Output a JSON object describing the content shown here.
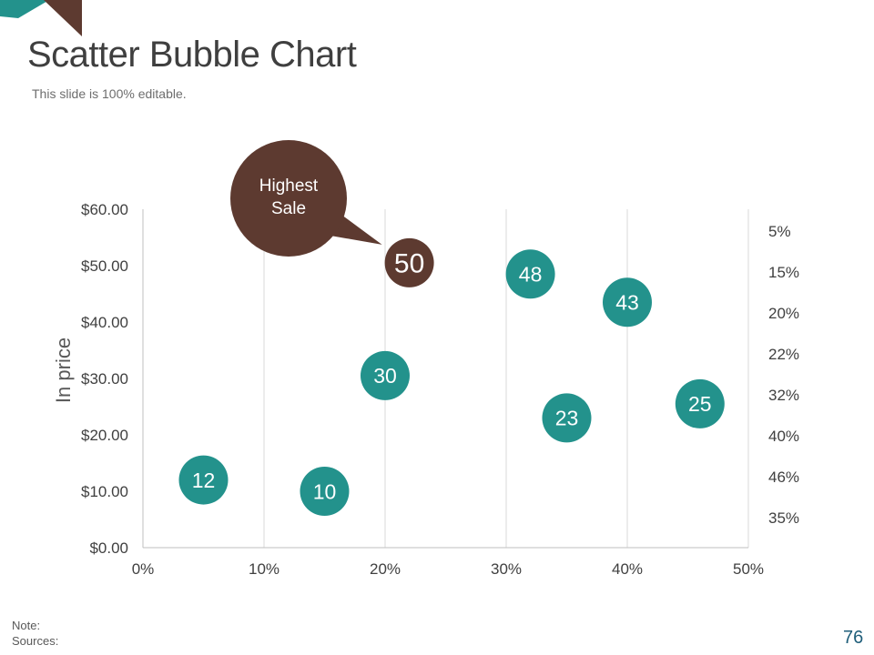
{
  "slide": {
    "title": "Scatter Bubble Chart",
    "subtitle": "This slide is 100% editable.",
    "note_label": "Note:",
    "sources_label": "Sources:",
    "page_number": "76"
  },
  "colors": {
    "teal": "#23928c",
    "brown": "#5d3a30",
    "title": "#3f3f3f",
    "axis_text": "#404040",
    "gridline": "#d9d9d9"
  },
  "callout": {
    "line1": "Highest",
    "line2": "Sale",
    "target_index": 0
  },
  "chart_data": {
    "type": "scatter",
    "ylabel": "In price",
    "xlim": [
      0,
      50
    ],
    "ylim": [
      0,
      60
    ],
    "grid": "vertical",
    "x_ticks": [
      "0%",
      "10%",
      "20%",
      "30%",
      "40%",
      "50%"
    ],
    "y_ticks": [
      "$0.00",
      "$10.00",
      "$20.00",
      "$30.00",
      "$40.00",
      "$50.00",
      "$60.00"
    ],
    "right_labels": [
      "5%",
      "15%",
      "20%",
      "22%",
      "32%",
      "40%",
      "46%",
      "35%"
    ],
    "points": [
      {
        "x": 22,
        "y": 50.5,
        "label": "50",
        "color": "#5d3a30"
      },
      {
        "x": 32,
        "y": 48.5,
        "label": "48",
        "color": "#23928c"
      },
      {
        "x": 40,
        "y": 43.5,
        "label": "43",
        "color": "#23928c"
      },
      {
        "x": 20,
        "y": 30.5,
        "label": "30",
        "color": "#23928c"
      },
      {
        "x": 46,
        "y": 25.5,
        "label": "25",
        "color": "#23928c"
      },
      {
        "x": 35,
        "y": 23,
        "label": "23",
        "color": "#23928c"
      },
      {
        "x": 5,
        "y": 12,
        "label": "12",
        "color": "#23928c"
      },
      {
        "x": 15,
        "y": 10,
        "label": "10",
        "color": "#23928c"
      }
    ]
  }
}
